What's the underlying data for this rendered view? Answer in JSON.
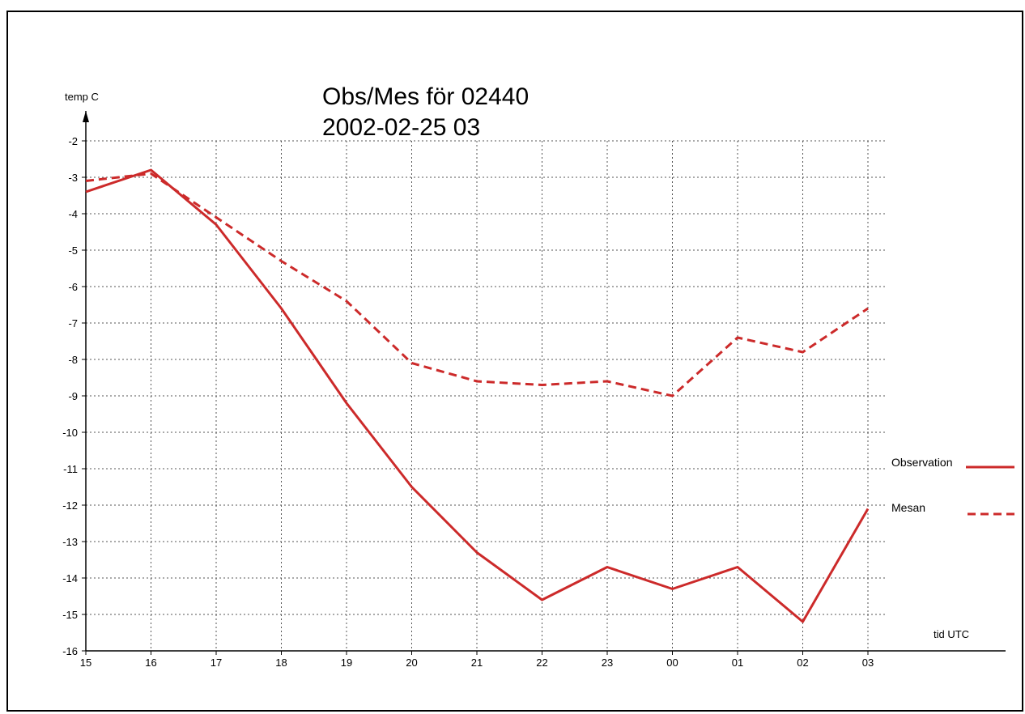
{
  "chart_data": {
    "type": "line",
    "title": [
      "Obs/Mes för 02440",
      "2002-02-25 03"
    ],
    "xlabel": "tid UTC",
    "ylabel": "temp C",
    "categories": [
      "15",
      "16",
      "17",
      "18",
      "19",
      "20",
      "21",
      "22",
      "23",
      "00",
      "01",
      "02",
      "03"
    ],
    "ylim": [
      -16,
      -2
    ],
    "yticks": [
      -2,
      -3,
      -4,
      -5,
      -6,
      -7,
      -8,
      -9,
      -10,
      -11,
      -12,
      -13,
      -14,
      -15,
      -16
    ],
    "grid": true,
    "legend_position": "right",
    "series": [
      {
        "name": "Observation",
        "style": "solid",
        "color": "#cc2a2a",
        "values": [
          -3.4,
          -2.8,
          -4.3,
          -6.6,
          -9.2,
          -11.5,
          -13.3,
          -14.6,
          -13.7,
          -14.3,
          -13.7,
          -15.2,
          -12.1
        ]
      },
      {
        "name": "Mesan",
        "style": "dashed",
        "color": "#cc2a2a",
        "values": [
          -3.1,
          -2.9,
          -4.1,
          -5.3,
          -6.4,
          -8.1,
          -8.6,
          -8.7,
          -8.6,
          -9.0,
          -7.4,
          -7.8,
          -6.6
        ]
      }
    ]
  }
}
